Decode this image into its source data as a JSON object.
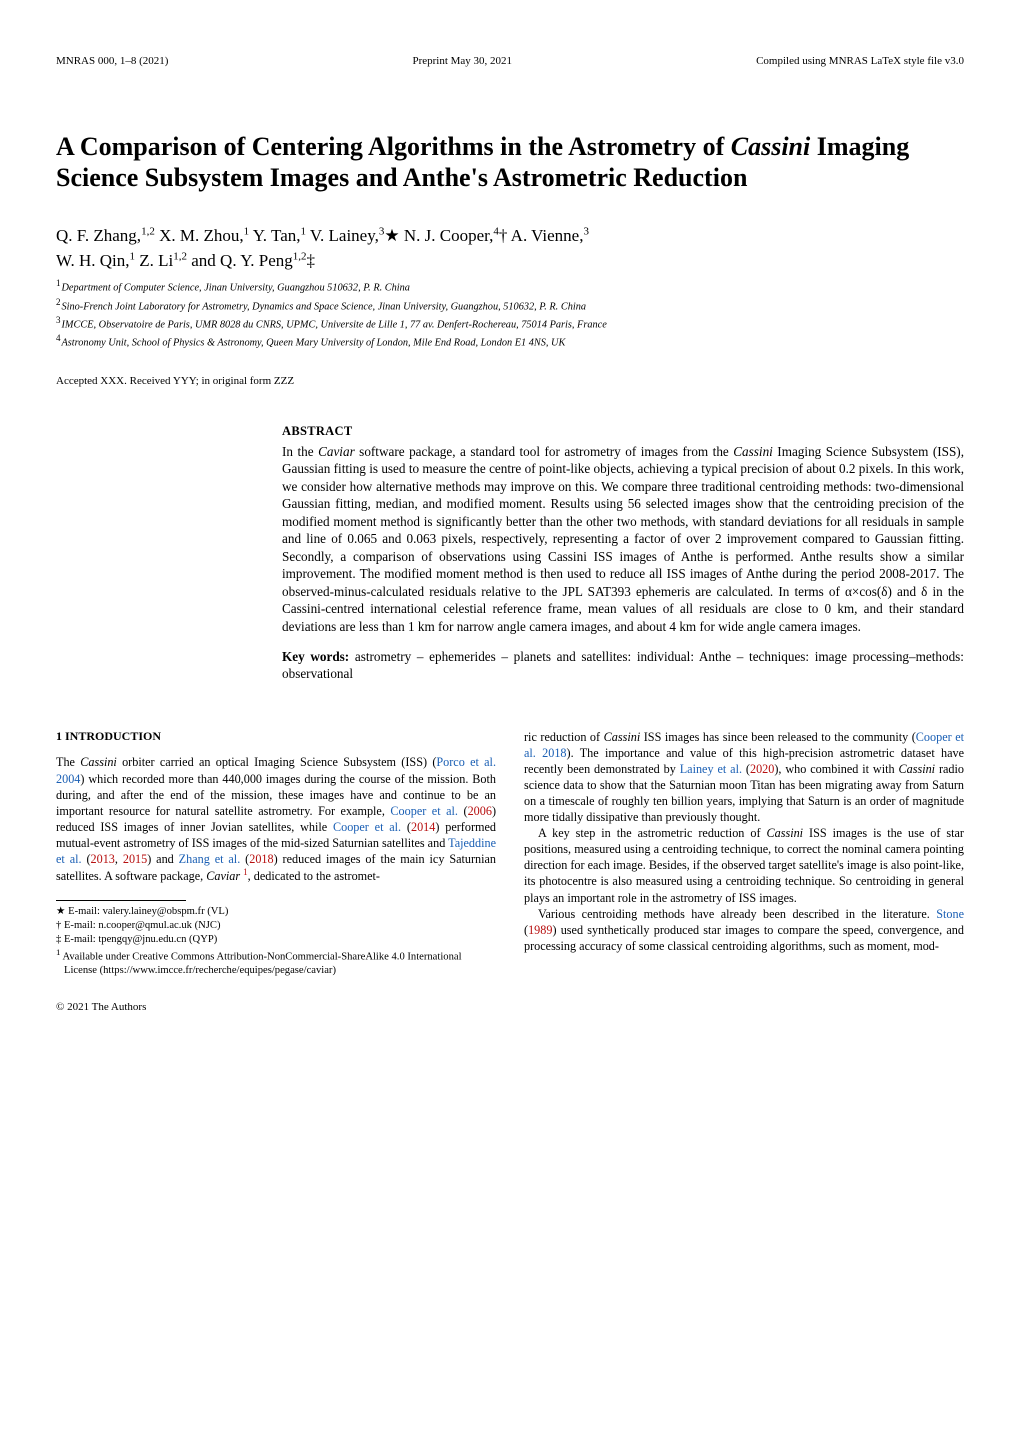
{
  "header": {
    "left": "MNRAS 000, 1–8 (2021)",
    "center": "Preprint May 30, 2021",
    "right": "Compiled using MNRAS LaTeX style file v3.0"
  },
  "title_html": "A Comparison of Centering Algorithms in the Astrometry of <em>Cassini</em> Imaging Science Subsystem Images and Anthe's Astrometric Reduction",
  "authors_html": "Q. F. Zhang,<sup>1,2</sup> X. M. Zhou,<sup>1</sup> Y. Tan,<sup>1</sup> V. Lainey,<sup>3</sup><span class='sym'>★</span> N. J. Cooper,<sup>4</sup><span class='sym'>†</span> A. Vienne,<sup>3</sup><br>W. H. Qin,<sup>1</sup> Z. Li<sup>1,2</sup> and Q. Y. Peng<sup>1,2</sup><span class='sym'>‡</span>",
  "affiliations": [
    {
      "n": "1",
      "text": "Department of Computer Science, Jinan University, Guangzhou 510632, P. R. China"
    },
    {
      "n": "2",
      "text": "Sino-French Joint Laboratory for Astrometry, Dynamics and Space Science, Jinan University, Guangzhou, 510632, P. R. China"
    },
    {
      "n": "3",
      "text": "IMCCE, Observatoire de Paris, UMR 8028 du CNRS, UPMC, Universite de Lille 1, 77 av. Denfert-Rochereau, 75014 Paris, France"
    },
    {
      "n": "4",
      "text": "Astronomy Unit, School of Physics & Astronomy, Queen Mary University of London, Mile End Road, London E1 4NS, UK"
    }
  ],
  "accepted": "Accepted XXX. Received YYY; in original form ZZZ",
  "abstract_head": "ABSTRACT",
  "abstract_html": "In the <em>Caviar</em> software package, a standard tool for astrometry of images from the <em>Cassini</em> Imaging Science Subsystem (ISS), Gaussian fitting is used to measure the centre of point-like objects, achieving a typical precision of about 0.2 pixels. In this work, we consider how alternative methods may improve on this. We compare three traditional centroiding methods: two-dimensional Gaussian fitting, median, and modified moment. Results using 56 selected images show that the centroiding precision of the modified moment method is significantly better than the other two methods, with standard deviations for all residuals in sample and line of 0.065 and 0.063 pixels, respectively, representing a factor of over 2 improvement compared to Gaussian fitting. Secondly, a comparison of observations using Cassini ISS images of Anthe is performed. Anthe results show a similar improvement. The modified moment method is then used to reduce all ISS images of Anthe during the period 2008-2017. The observed-minus-calculated residuals relative to the JPL SAT393 ephemeris are calculated. In terms of α×cos(δ) and δ in the Cassini-centred international celestial reference frame, mean values of all residuals are close to 0 km, and their standard deviations are less than 1 km for narrow angle camera images, and about 4 km for wide angle camera images.",
  "keywords_html": "<b>Key words:</b> astrometry – ephemerides – planets and satellites: individual: Anthe – techniques: image processing–methods: observational",
  "section1_head": "1   INTRODUCTION",
  "col_left_p1_html": "The <em>Cassini</em> orbiter carried an optical Imaging Science Subsystem (ISS) (<a class='cite' href='#' data-name='cite-porco-2004' data-interactable='true'>Porco et al. 2004</a>) which recorded more than 440,000 images during the course of the mission. Both during, and after the end of the mission, these images have and continue to be an important resource for natural satellite astrometry. For example, <a class='cite' href='#' data-name='cite-cooper-2006' data-interactable='true'>Cooper et al.</a> (<a class='ref' href='#' data-name='ref-2006' data-interactable='true'>2006</a>) reduced ISS images of inner Jovian satellites, while <a class='cite' href='#' data-name='cite-cooper-2014' data-interactable='true'>Cooper et al.</a> (<a class='ref' href='#' data-name='ref-2014' data-interactable='true'>2014</a>) performed mutual-event astrometry of ISS images of the mid-sized Saturnian satellites and <a class='cite' href='#' data-name='cite-tajeddine' data-interactable='true'>Tajeddine et al.</a> (<a class='ref' href='#' data-name='ref-2013' data-interactable='true'>2013</a>, <a class='ref' href='#' data-name='ref-2015' data-interactable='true'>2015</a>) and <a class='cite' href='#' data-name='cite-zhang-2018' data-interactable='true'>Zhang et al.</a> (<a class='ref' href='#' data-name='ref-2018' data-interactable='true'>2018</a>) reduced images of the main icy Saturnian satellites. A software package, <em>Caviar</em> <a class='ref' href='#' data-name='footnote-1-ref' data-interactable='true'><sup class='fn'>1</sup></a>, dedicated to the astromet-",
  "col_right_p1_html": "ric reduction of <em>Cassini</em> ISS images has since been released to the community (<a class='cite' href='#' data-name='cite-cooper-2018' data-interactable='true'>Cooper et al. 2018</a>). The importance and value of this high-precision astrometric dataset have recently been demonstrated by <a class='cite' href='#' data-name='cite-lainey-2020' data-interactable='true'>Lainey et al.</a> (<a class='ref' href='#' data-name='ref-2020' data-interactable='true'>2020</a>), who combined it with <em>Cassini</em> radio science data to show that the Saturnian moon Titan has been migrating away from Saturn on a timescale of roughly ten billion years, implying that Saturn is an order of magnitude more tidally dissipative than previously thought.",
  "col_right_p2_html": "A key step in the astrometric reduction of <em>Cassini</em> ISS images is the use of star positions, measured using a centroiding technique, to correct the nominal camera pointing direction for each image. Besides, if the observed target satellite's image is also point-like, its photocentre is also measured using a centroiding technique. So centroiding in general plays an important role in the astrometry of ISS images.",
  "col_right_p3_html": "Various centroiding methods have already been described in the literature. <a class='cite' href='#' data-name='cite-stone-1989' data-interactable='true'>Stone</a> (<a class='ref' href='#' data-name='ref-1989' data-interactable='true'>1989</a>) used synthetically produced star images to compare the speed, convergence, and processing accuracy of some classical centroiding algorithms, such as moment, mod-",
  "footnotes": [
    "★ E-mail: valery.lainey@obspm.fr (VL)",
    "† E-mail: n.cooper@qmul.ac.uk (NJC)",
    "‡ E-mail: tpengqy@jnu.edu.cn (QYP)",
    "<sup>1</sup> Available under Creative Commons Attribution-NonCommercial-ShareAlike 4.0 International License (https://www.imcce.fr/recherche/equipes/pegase/caviar)"
  ],
  "copyright": "© 2021 The Authors",
  "colors": {
    "link_red": "#b70f0f",
    "link_blue": "#1a5fb4",
    "text": "#000000",
    "background": "#ffffff"
  }
}
